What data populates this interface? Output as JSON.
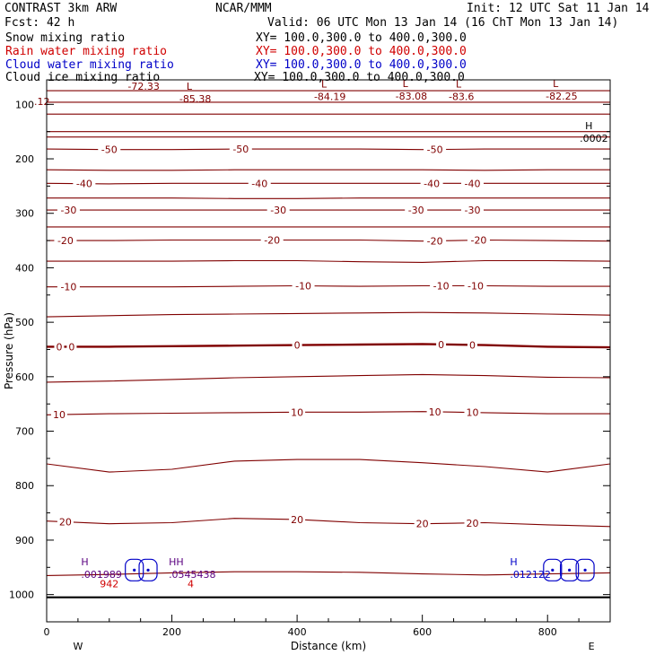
{
  "header": {
    "model": "CONTRAST  3km ARW",
    "org": "NCAR/MMM",
    "init": "Init: 12 UTC Sat 11 Jan 14",
    "fcst": "Fcst:   42 h",
    "valid": "Valid: 06 UTC Mon 13 Jan 14 (16 ChT Mon 13 Jan 14)"
  },
  "fields": [
    {
      "name": "Snow mixing ratio",
      "xy": "XY= 100.0,300.0 to 400.0,300.0",
      "color": "#000000"
    },
    {
      "name": "Rain water mixing ratio",
      "xy": "XY= 100.0,300.0 to 400.0,300.0",
      "color": "#d00000"
    },
    {
      "name": "Cloud water mixing ratio",
      "xy": "XY= 100.0,300.0 to 400.0,300.0",
      "color": "#0000c8"
    },
    {
      "name": "Cloud ice mixing ratio",
      "xy": "XY= 100.0,300.0 to 400.0,300.0",
      "color": "#000000"
    }
  ],
  "colors": {
    "temperature": "#800000",
    "cloud_water": "#0000c8",
    "snow": "#5a0080",
    "rain": "#d00000",
    "axis": "#000000"
  },
  "chart_data": {
    "type": "contour",
    "title": "CONTRAST  3km ARW",
    "xlabel": "Distance (km)",
    "ylabel": "Pressure (hPa)",
    "xlim": [
      0,
      900
    ],
    "ylim": [
      1050,
      55
    ],
    "x_ticks": [
      0,
      200,
      400,
      600,
      800
    ],
    "y_ticks": [
      100,
      200,
      300,
      400,
      500,
      600,
      700,
      800,
      900,
      1000
    ],
    "x_end_labels": {
      "left": "W",
      "right": "E"
    },
    "surface_pressure": 1005,
    "isotherms": [
      {
        "p": [
          75,
          75,
          75,
          75,
          75,
          75,
          75,
          75,
          75,
          75
        ],
        "label": "",
        "bold": false
      },
      {
        "p": [
          96,
          96,
          96,
          96,
          96,
          96,
          96,
          96,
          96,
          96
        ],
        "label": "",
        "bold": false
      },
      {
        "p": [
          118,
          118,
          118,
          118,
          118,
          118,
          118,
          118,
          118,
          118
        ],
        "label": "",
        "bold": false
      },
      {
        "p": [
          150,
          150,
          150,
          150,
          150,
          150,
          150,
          150,
          150,
          150
        ],
        "label": "",
        "bold": false
      },
      {
        "p": [
          160,
          160,
          160,
          160,
          160,
          160,
          160,
          160,
          160,
          160
        ],
        "label": "",
        "bold": false
      },
      {
        "p": [
          182,
          183,
          183,
          182,
          182,
          182,
          183,
          182,
          182,
          182
        ],
        "label": "-50",
        "bold": false,
        "label_x": [
          100,
          310,
          620
        ]
      },
      {
        "p": [
          220,
          221,
          221,
          220,
          220,
          220,
          220,
          221,
          220,
          220
        ],
        "label": "",
        "bold": false
      },
      {
        "p": [
          245,
          246,
          245,
          245,
          245,
          245,
          245,
          245,
          245,
          245
        ],
        "label": "-40",
        "bold": false,
        "label_x": [
          60,
          340,
          615,
          680
        ]
      },
      {
        "p": [
          272,
          272,
          272,
          273,
          273,
          272,
          272,
          272,
          272,
          272
        ],
        "label": "",
        "bold": false
      },
      {
        "p": [
          294,
          294,
          294,
          294,
          294,
          294,
          294,
          294,
          294,
          294
        ],
        "label": "-30",
        "bold": false,
        "label_x": [
          35,
          370,
          590,
          680
        ]
      },
      {
        "p": [
          325,
          325,
          325,
          325,
          325,
          325,
          325,
          325,
          325,
          325
        ],
        "label": "",
        "bold": false
      },
      {
        "p": [
          350,
          350,
          349,
          349,
          349,
          349,
          351,
          349,
          350,
          351
        ],
        "label": "-20",
        "bold": false,
        "label_x": [
          30,
          360,
          620,
          690
        ]
      },
      {
        "p": [
          388,
          388,
          388,
          387,
          387,
          389,
          390,
          387,
          387,
          388
        ],
        "label": "",
        "bold": false
      },
      {
        "p": [
          435,
          435,
          435,
          434,
          433,
          434,
          433,
          433,
          434,
          434
        ],
        "label": "-10",
        "bold": false,
        "label_x": [
          35,
          410,
          630,
          685
        ]
      },
      {
        "p": [
          490,
          488,
          486,
          485,
          484,
          483,
          482,
          483,
          485,
          487
        ],
        "label": "",
        "bold": false
      },
      {
        "p": [
          545,
          545,
          544,
          543,
          542,
          541,
          540,
          542,
          545,
          546
        ],
        "label": "0",
        "bold": true,
        "label_x": [
          20,
          40,
          400,
          630,
          680
        ]
      },
      {
        "p": [
          610,
          608,
          605,
          602,
          600,
          598,
          596,
          598,
          601,
          602
        ],
        "label": "",
        "bold": false
      },
      {
        "p": [
          670,
          668,
          667,
          666,
          665,
          665,
          664,
          666,
          668,
          668
        ],
        "label": "10",
        "bold": false,
        "label_x": [
          20,
          400,
          620,
          680
        ]
      },
      {
        "p": [
          760,
          775,
          770,
          755,
          752,
          752,
          758,
          765,
          775,
          760
        ],
        "label": "",
        "bold": false
      },
      {
        "p": [
          865,
          870,
          868,
          860,
          862,
          868,
          870,
          868,
          872,
          875
        ],
        "label": "20",
        "bold": false,
        "label_x": [
          30,
          400,
          600,
          680
        ]
      },
      {
        "p": [
          965,
          963,
          960,
          958,
          958,
          959,
          962,
          964,
          962,
          960
        ],
        "label": "",
        "bold": false
      }
    ],
    "lows": [
      {
        "x": 255,
        "p": 83,
        "label": "L",
        "value": "-85.38"
      },
      {
        "x": 470,
        "p": 79,
        "label": "L",
        "value": "-84.19"
      },
      {
        "x": 600,
        "p": 78,
        "label": "L",
        "value": "-83.08"
      },
      {
        "x": 685,
        "p": 79,
        "label": "L",
        "value": "-83.6"
      },
      {
        "x": 840,
        "p": 78,
        "label": "L",
        "value": "-82.25"
      }
    ],
    "contour_values": [
      {
        "x": 155,
        "p": 73,
        "value": "-72.33"
      },
      {
        "x": 5,
        "p": 101,
        "value": ".12"
      }
    ],
    "highs": [
      {
        "x": 860,
        "p": 152,
        "label": "H",
        "value": ".0002"
      }
    ],
    "cloud_water": [
      {
        "x": 140,
        "p": 955
      },
      {
        "x": 162,
        "p": 955
      },
      {
        "x": 808,
        "p": 955
      },
      {
        "x": 835,
        "p": 955
      },
      {
        "x": 860,
        "p": 955
      }
    ],
    "markers": [
      {
        "x": 55,
        "p": 940,
        "label": "H",
        "value": ".001989",
        "color": "snow"
      },
      {
        "x": 85,
        "p": 957,
        "label": "",
        "value": "942",
        "color": "rain"
      },
      {
        "x": 195,
        "p": 940,
        "label": "HH",
        "value": ".0545438",
        "color": "snow"
      },
      {
        "x": 225,
        "p": 957,
        "label": "",
        "value": "4",
        "color": "rain"
      },
      {
        "x": 740,
        "p": 940,
        "label": "H",
        "value": ".012122",
        "color": "cloud_water"
      }
    ]
  }
}
